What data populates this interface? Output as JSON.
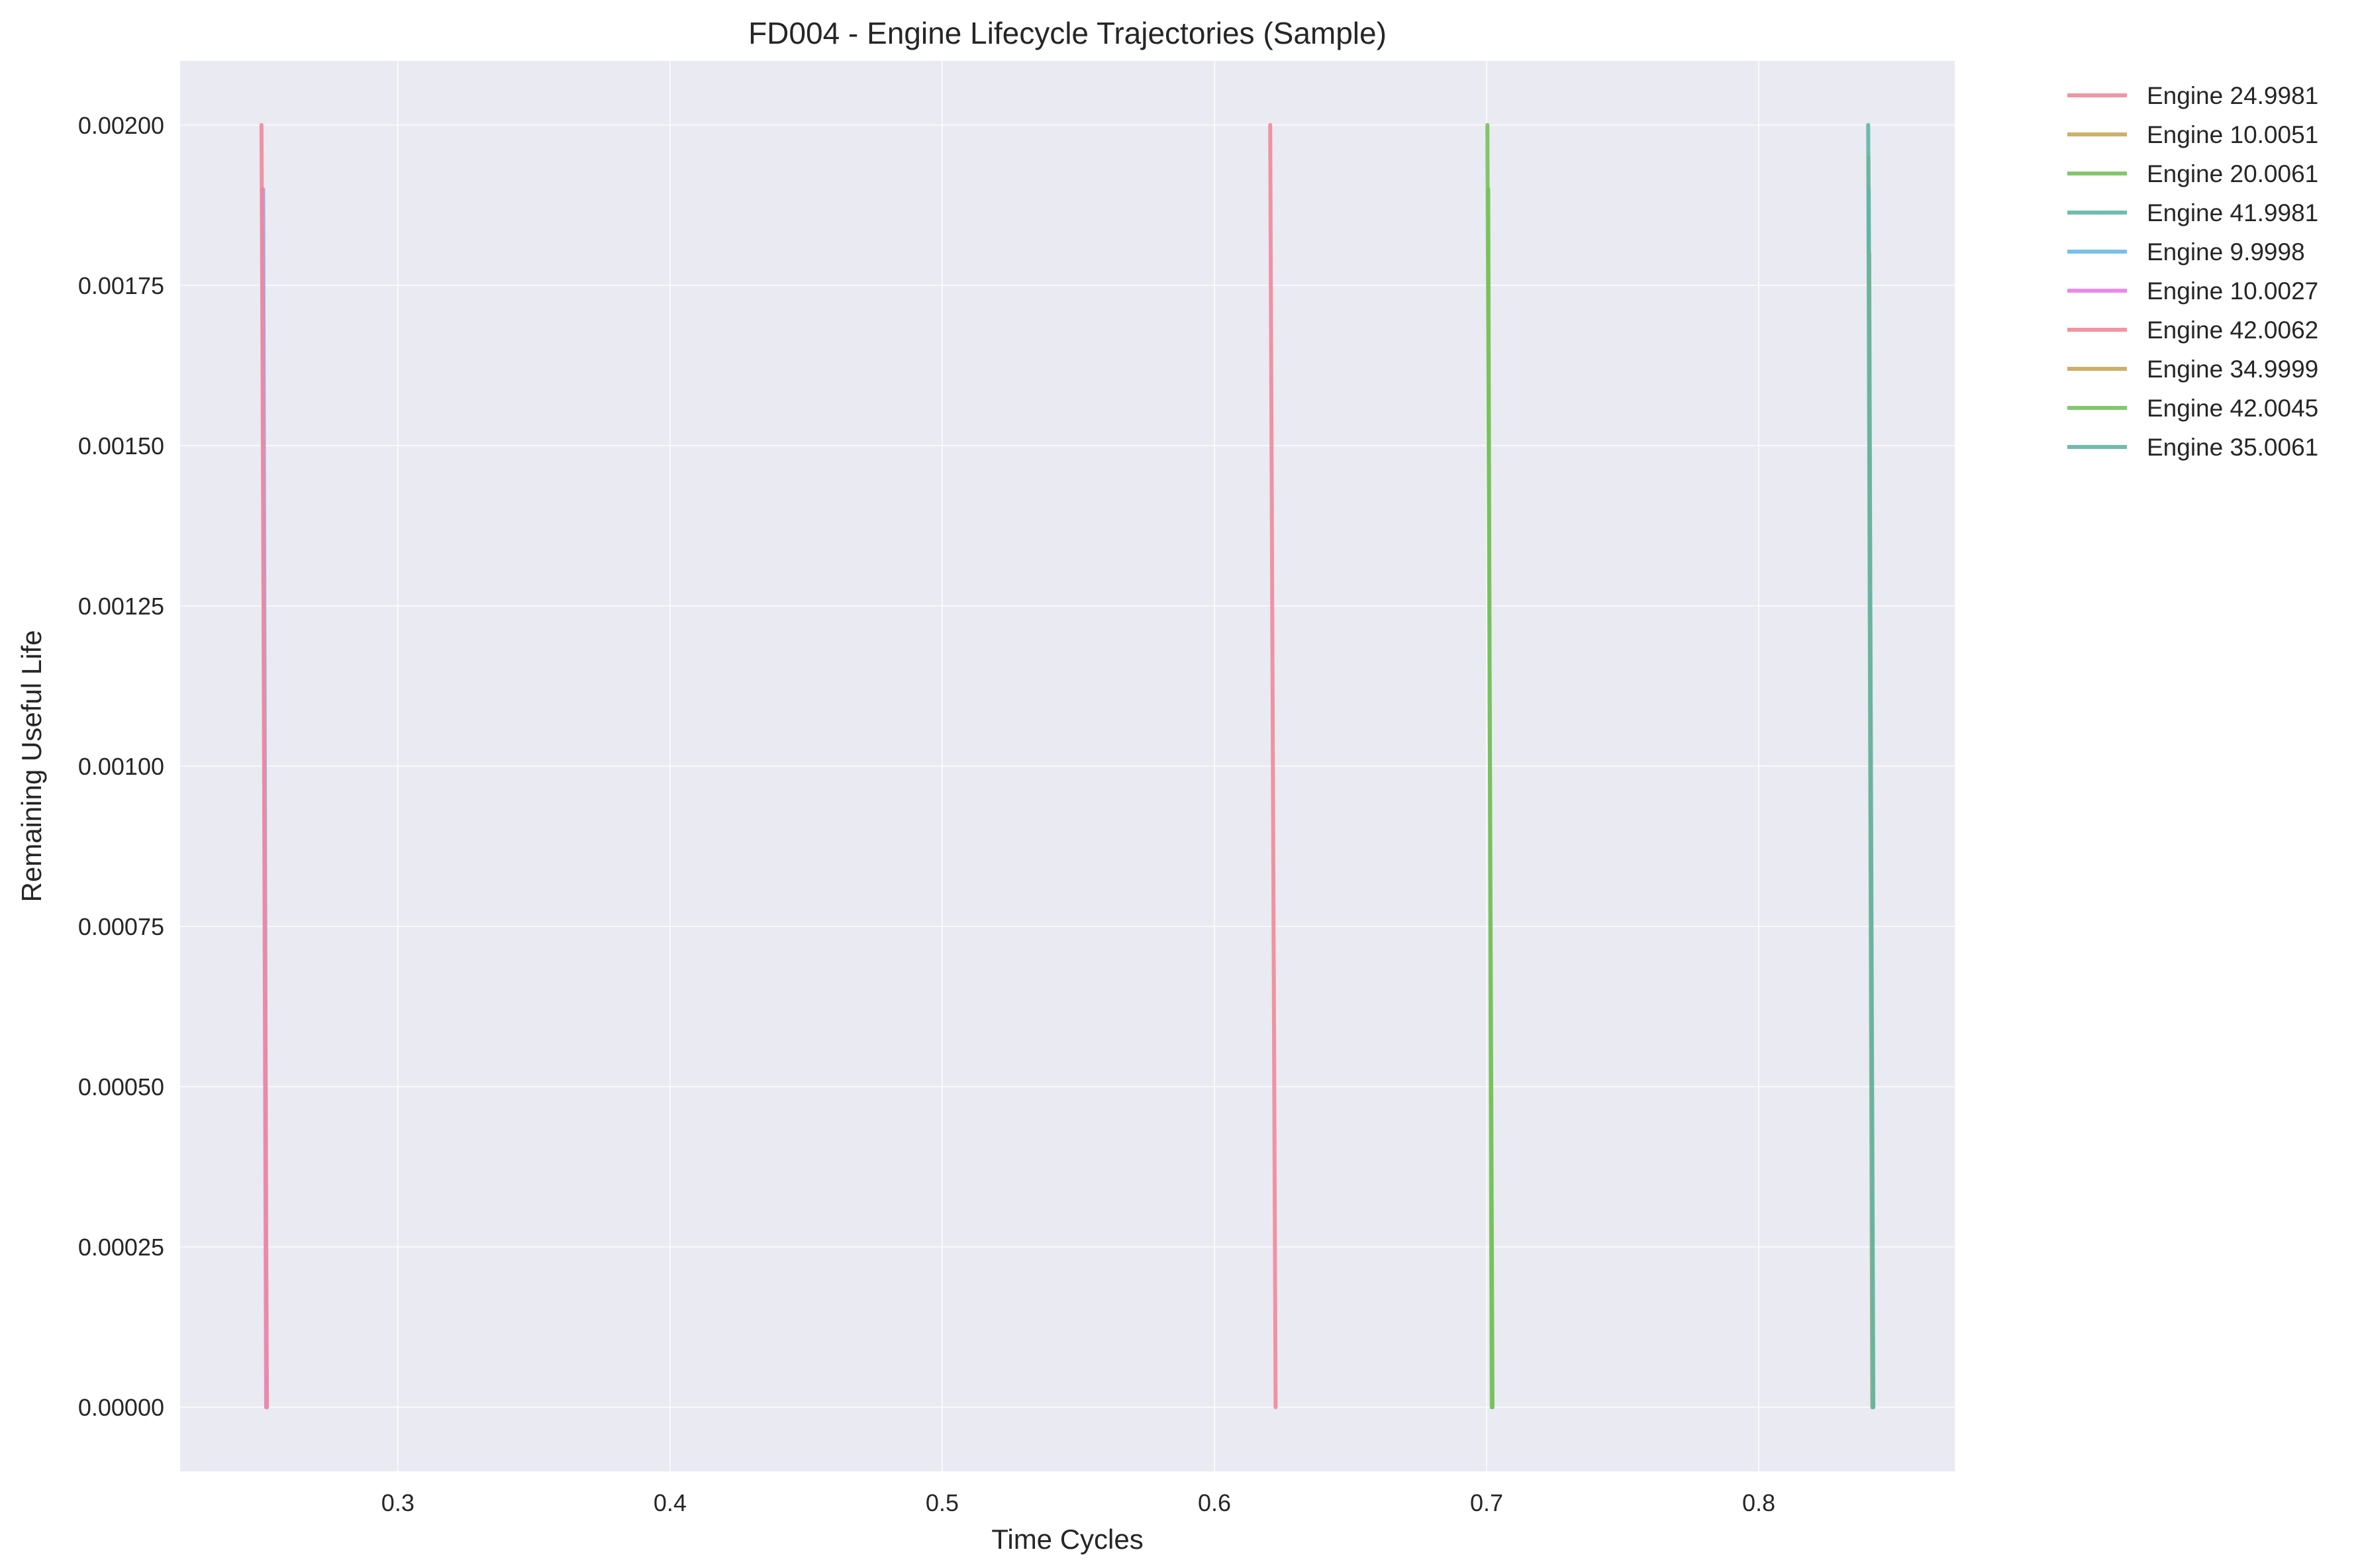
{
  "chart_data": {
    "type": "line",
    "title": "FD004 - Engine Lifecycle Trajectories (Sample)",
    "xlabel": "Time Cycles",
    "ylabel": "Remaining Useful Life",
    "xlim": [
      0.22,
      0.872
    ],
    "ylim": [
      -0.0001,
      0.0021
    ],
    "xticks": [
      0.3,
      0.4,
      0.5,
      0.6,
      0.7,
      0.8
    ],
    "xtick_labels": [
      "0.3",
      "0.4",
      "0.5",
      "0.6",
      "0.7",
      "0.8"
    ],
    "yticks": [
      0.0,
      0.00025,
      0.0005,
      0.00075,
      0.001,
      0.00125,
      0.0015,
      0.00175,
      0.002
    ],
    "ytick_labels": [
      "0.00000",
      "0.00025",
      "0.00050",
      "0.00075",
      "0.00100",
      "0.00125",
      "0.00150",
      "0.00175",
      "0.00200"
    ],
    "grid": true,
    "legend_position": "outside-top-right",
    "background": "#EAEAF2",
    "series": [
      {
        "name": "Engine 24.9981",
        "color": "#F08A99",
        "x": [
          0.6205,
          0.6225
        ],
        "y": [
          0.002,
          0.0
        ]
      },
      {
        "name": "Engine 10.0051",
        "color": "#C9A65A",
        "x": [
          0.8403,
          0.8418
        ],
        "y": [
          0.00195,
          0.0
        ]
      },
      {
        "name": "Engine 20.0061",
        "color": "#76C15B",
        "x": [
          0.7003,
          0.7022
        ],
        "y": [
          0.002,
          0.0
        ]
      },
      {
        "name": "Engine 41.9981",
        "color": "#5EB6A5",
        "x": [
          0.8402,
          0.8417
        ],
        "y": [
          0.002,
          0.0
        ]
      },
      {
        "name": "Engine 9.9998",
        "color": "#6BB8E6",
        "x": [
          0.2505,
          0.2518
        ],
        "y": [
          0.0019,
          0.0
        ]
      },
      {
        "name": "Engine 10.0027",
        "color": "#E87DEA",
        "x": [
          0.2502,
          0.2516
        ],
        "y": [
          0.0019,
          0.0
        ]
      },
      {
        "name": "Engine 42.0062",
        "color": "#F08A99",
        "x": [
          0.2499,
          0.2519
        ],
        "y": [
          0.002,
          0.0
        ]
      },
      {
        "name": "Engine 34.9999",
        "color": "#C9A65A",
        "x": [
          0.8406,
          0.8419
        ],
        "y": [
          0.0018,
          0.0
        ]
      },
      {
        "name": "Engine 42.0045",
        "color": "#76C15B",
        "x": [
          0.7006,
          0.7019
        ],
        "y": [
          0.0019,
          0.0
        ]
      },
      {
        "name": "Engine 35.0061",
        "color": "#5EB6A5",
        "x": [
          0.8404,
          0.8421
        ],
        "y": [
          0.0019,
          0.0
        ]
      }
    ]
  }
}
